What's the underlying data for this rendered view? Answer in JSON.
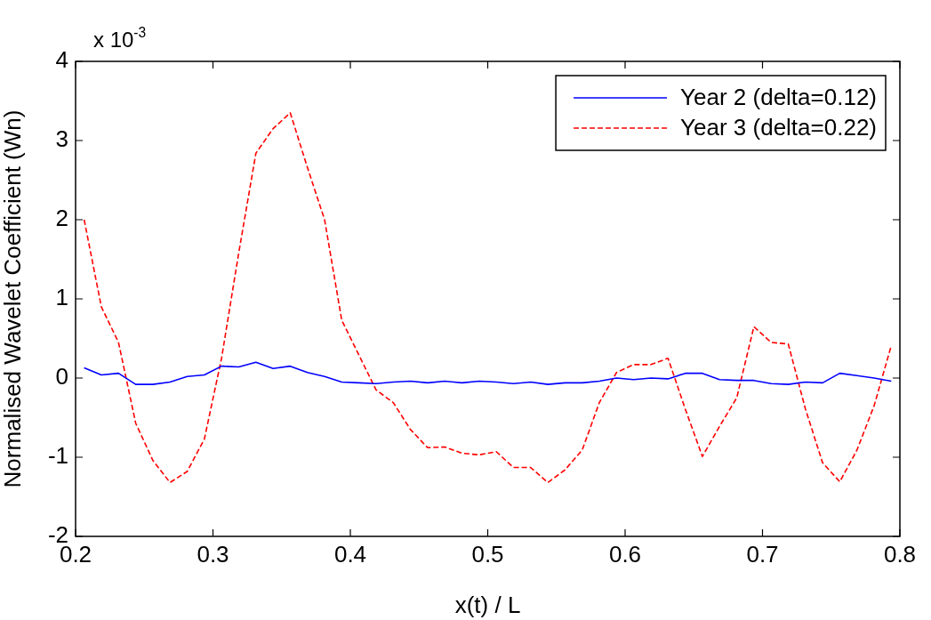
{
  "chart_data": {
    "type": "line",
    "xlabel": "x(t) / L",
    "ylabel": "Normalised Wavelet Coefficient (Wn)",
    "annotations": [
      "x 10$^{-3}$"
    ],
    "x": [
      0.20625,
      0.21875,
      0.23125,
      0.24375,
      0.25625,
      0.26875,
      0.28125,
      0.29375,
      0.30625,
      0.31875,
      0.33125,
      0.34375,
      0.35625,
      0.36875,
      0.38125,
      0.39375,
      0.40625,
      0.41875,
      0.43125,
      0.44375,
      0.45625,
      0.46875,
      0.48125,
      0.49375,
      0.50625,
      0.51875,
      0.53125,
      0.54375,
      0.55625,
      0.56875,
      0.58125,
      0.59375,
      0.60625,
      0.61875,
      0.63125,
      0.64375,
      0.65625,
      0.66875,
      0.68125,
      0.69375,
      0.70625,
      0.71875,
      0.73125,
      0.74375,
      0.75625,
      0.76875,
      0.78125,
      0.79375
    ],
    "series": [
      {
        "name": "Year 2 (delta=0.12)",
        "color": "#0000ff",
        "line_style": "solid",
        "values": [
          0.13,
          0.04,
          0.06,
          -0.08,
          -0.08,
          -0.05,
          0.02,
          0.04,
          0.15,
          0.14,
          0.2,
          0.12,
          0.15,
          0.07,
          0.02,
          -0.05,
          -0.06,
          -0.07,
          -0.05,
          -0.04,
          -0.06,
          -0.04,
          -0.06,
          -0.04,
          -0.05,
          -0.07,
          -0.05,
          -0.08,
          -0.06,
          -0.06,
          -0.04,
          0.0,
          -0.02,
          0.0,
          -0.01,
          0.06,
          0.06,
          -0.02,
          -0.03,
          -0.03,
          -0.07,
          -0.08,
          -0.05,
          -0.06,
          0.06,
          0.03,
          0.0,
          -0.04
        ]
      },
      {
        "name": "Year 3 (delta=0.22)",
        "color": "#ff0000",
        "line_style": "dashed",
        "values": [
          2.0,
          0.9,
          0.45,
          -0.57,
          -1.04,
          -1.32,
          -1.18,
          -0.77,
          0.25,
          1.58,
          2.84,
          3.15,
          3.35,
          2.66,
          2.0,
          0.73,
          0.29,
          -0.15,
          -0.31,
          -0.65,
          -0.88,
          -0.87,
          -0.95,
          -0.97,
          -0.93,
          -1.13,
          -1.13,
          -1.32,
          -1.16,
          -0.91,
          -0.31,
          0.07,
          0.17,
          0.17,
          0.25,
          -0.39,
          -0.99,
          -0.61,
          -0.25,
          0.65,
          0.45,
          0.43,
          -0.39,
          -1.07,
          -1.31,
          -0.91,
          -0.35,
          0.41
        ]
      }
    ],
    "xlim": [
      0.2,
      0.8
    ],
    "xticks": [
      0.2,
      0.3,
      0.4,
      0.5,
      0.6,
      0.7,
      0.8
    ],
    "ylim": [
      -2,
      4
    ],
    "yticks": [
      -2,
      -1,
      0,
      1,
      2,
      3,
      4
    ],
    "grid": false,
    "legend": "top right",
    "marker": "none"
  }
}
